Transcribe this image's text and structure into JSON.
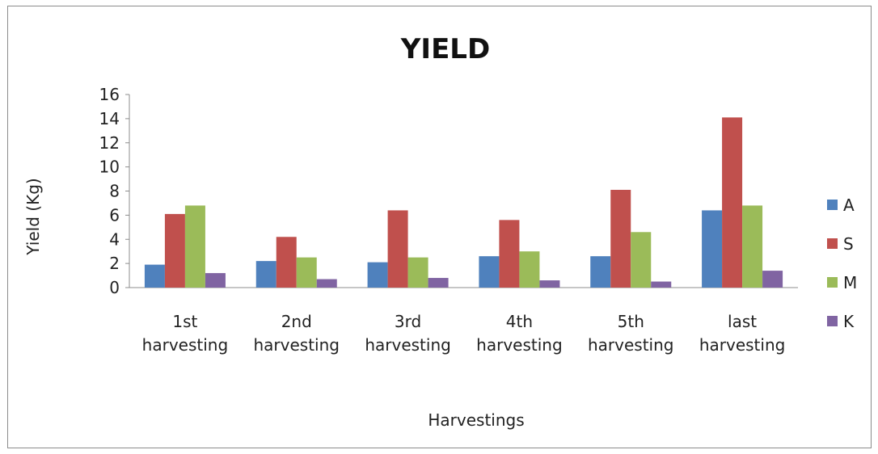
{
  "chart_data": {
    "type": "bar",
    "title": "YIELD",
    "xlabel": "Harvestings",
    "ylabel": "Yield (Kg)",
    "ylim": [
      0,
      16
    ],
    "yticks": [
      "0",
      "2",
      "4",
      "6",
      "8",
      "10",
      "12",
      "14",
      "16"
    ],
    "categories": [
      [
        "1st",
        "harvesting"
      ],
      [
        "2nd",
        "harvesting"
      ],
      [
        "3rd",
        "harvesting"
      ],
      [
        "4th",
        "harvesting"
      ],
      [
        "5th",
        "harvesting"
      ],
      [
        "last",
        "harvesting"
      ]
    ],
    "series": [
      {
        "name": "A",
        "color": "#4f81bd",
        "values": [
          1.9,
          2.2,
          2.1,
          2.6,
          2.6,
          6.4
        ]
      },
      {
        "name": "S",
        "color": "#c0504d",
        "values": [
          6.1,
          4.2,
          6.4,
          5.6,
          8.1,
          14.1
        ]
      },
      {
        "name": "M",
        "color": "#9bbb59",
        "values": [
          6.8,
          2.5,
          2.5,
          3.0,
          4.6,
          6.8
        ]
      },
      {
        "name": "K",
        "color": "#8064a2",
        "values": [
          1.2,
          0.7,
          0.8,
          0.6,
          0.5,
          1.4
        ]
      }
    ],
    "legend_position": "right",
    "grid": false
  }
}
